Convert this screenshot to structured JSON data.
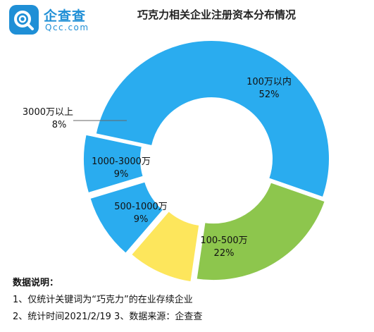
{
  "logo": {
    "cn": "企查查",
    "en": "Qcc.com",
    "icon": "qcc-logo-icon",
    "color": "#1f8fd6"
  },
  "title": "巧克力相关企业注册资本分布情况",
  "chart_data": {
    "type": "pie",
    "style": "donut-exploded",
    "title": "巧克力相关企业注册资本分布情况",
    "slices": [
      {
        "label": "100万以内",
        "percent_label": "52%",
        "value": 52,
        "color": "#2aacef"
      },
      {
        "label": "100-500万",
        "percent_label": "22%",
        "value": 22,
        "color": "#8dc64d"
      },
      {
        "label": "500-1000万",
        "percent_label": "9%",
        "value": 9,
        "color": "#fde65c"
      },
      {
        "label": "1000-3000万",
        "percent_label": "9%",
        "value": 9,
        "color": "#2aacef"
      },
      {
        "label": "3000万以上",
        "percent_label": "8%",
        "value": 8,
        "color": "#2aacef"
      }
    ]
  },
  "notes": {
    "heading": "数据说明：",
    "line1": "1、仅统计关键词为“巧克力”的在业存续企业",
    "line2": "2、统计时间2021/2/19   3、数据来源：企查查"
  }
}
